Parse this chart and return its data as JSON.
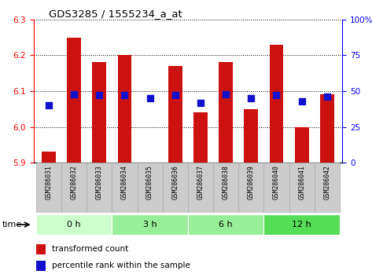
{
  "title": "GDS3285 / 1555234_a_at",
  "samples": [
    "GSM286031",
    "GSM286032",
    "GSM286033",
    "GSM286034",
    "GSM286035",
    "GSM286036",
    "GSM286037",
    "GSM286038",
    "GSM286039",
    "GSM286040",
    "GSM286041",
    "GSM286042"
  ],
  "transformed_count": [
    5.93,
    6.25,
    6.18,
    6.2,
    5.9,
    6.17,
    6.04,
    6.18,
    6.05,
    6.23,
    6.0,
    6.09
  ],
  "percentile_rank": [
    40,
    48,
    47,
    47,
    45,
    47,
    42,
    48,
    45,
    47,
    43,
    46
  ],
  "base_value": 5.9,
  "ylim_left": [
    5.9,
    6.3
  ],
  "ylim_right": [
    0,
    100
  ],
  "yticks_left": [
    5.9,
    6.0,
    6.1,
    6.2,
    6.3
  ],
  "yticks_right": [
    0,
    25,
    50,
    75,
    100
  ],
  "ytick_labels_right": [
    "0",
    "25",
    "50",
    "75",
    "100%"
  ],
  "groups": [
    {
      "label": "0 h",
      "start": 0,
      "end": 3,
      "color": "#ccffcc"
    },
    {
      "label": "3 h",
      "start": 3,
      "end": 6,
      "color": "#99ee99"
    },
    {
      "label": "6 h",
      "start": 6,
      "end": 9,
      "color": "#99ee99"
    },
    {
      "label": "12 h",
      "start": 9,
      "end": 12,
      "color": "#55dd55"
    }
  ],
  "bar_color": "#cc1111",
  "dot_color": "#1111cc",
  "bar_width": 0.55,
  "dot_size": 28,
  "background_label": "#cccccc",
  "label_edge": "#aaaaaa",
  "time_label": "time",
  "legend_bar": "transformed count",
  "legend_dot": "percentile rank within the sample"
}
